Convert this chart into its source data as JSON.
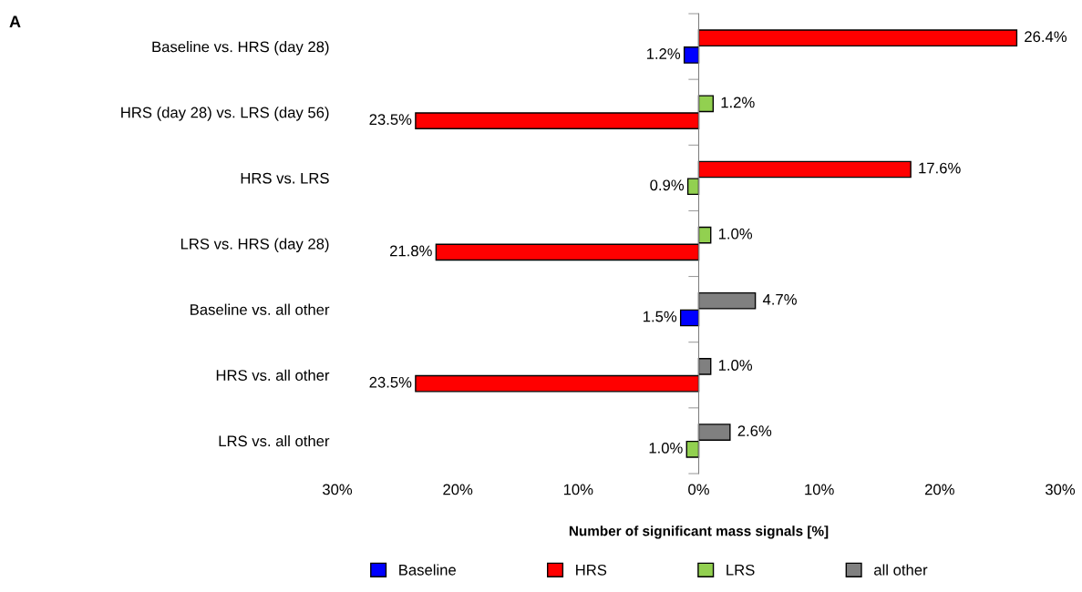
{
  "chart_data": {
    "type": "bar",
    "orientation": "horizontal",
    "xlabel": "Number of significant mass signals [%]",
    "categories": [
      "Baseline vs. HRS (day 28)",
      "HRS (day 28) vs. LRS (day 56)",
      "HRS vs. LRS",
      "LRS vs. HRS (day 28)",
      "Baseline vs. all other",
      "HRS vs. all other",
      "LRS vs. all other"
    ],
    "series": [
      {
        "name": "Baseline",
        "color": "#0000ff",
        "values": [
          1.2,
          null,
          null,
          null,
          1.5,
          null,
          null
        ],
        "base": [
          -1.2,
          null,
          null,
          null,
          -1.5,
          null,
          null
        ],
        "value_labels": [
          "1.2%",
          null,
          null,
          null,
          "1.5%",
          null,
          null
        ]
      },
      {
        "name": "HRS",
        "color": "#ff0000",
        "values": [
          26.4,
          23.5,
          17.6,
          21.8,
          null,
          23.5,
          null
        ],
        "base": [
          0,
          -23.5,
          0,
          -21.8,
          null,
          -23.5,
          null
        ],
        "value_labels": [
          "26.4%",
          "23.5%",
          "17.6%",
          "21.8%",
          null,
          "23.5%",
          null
        ]
      },
      {
        "name": "LRS",
        "color": "#92d050",
        "values": [
          null,
          1.2,
          0.9,
          1.0,
          null,
          null,
          1.0
        ],
        "base": [
          null,
          0,
          -0.9,
          0,
          null,
          null,
          -1.0
        ],
        "value_labels": [
          null,
          "1.2%",
          "0.9%",
          "1.0%",
          null,
          null,
          "1.0%"
        ]
      },
      {
        "name": "all other",
        "color": "#808080",
        "values": [
          null,
          null,
          null,
          null,
          4.7,
          1.0,
          2.6
        ],
        "base": [
          null,
          null,
          null,
          null,
          0,
          0,
          0
        ],
        "value_labels": [
          null,
          null,
          null,
          null,
          "4.7%",
          "1.0%",
          "2.6%"
        ]
      }
    ],
    "xlim": [
      -30,
      30
    ],
    "xticks": [
      {
        "value": -30,
        "label": "30%"
      },
      {
        "value": -20,
        "label": "20%"
      },
      {
        "value": -10,
        "label": "10%"
      },
      {
        "value": 0,
        "label": "0%"
      },
      {
        "value": 10,
        "label": "10%"
      },
      {
        "value": 20,
        "label": "20%"
      },
      {
        "value": 30,
        "label": "30%"
      }
    ],
    "legend": "bottom",
    "annotations": [
      "A"
    ]
  }
}
